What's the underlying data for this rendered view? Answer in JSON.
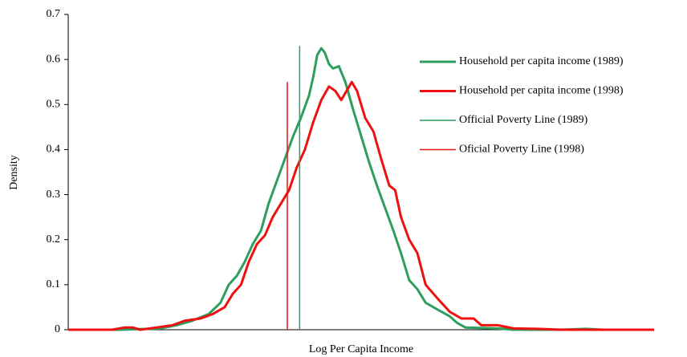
{
  "chart_data": {
    "type": "line",
    "x_label": "Log Per Capita Income",
    "y_label": "Density",
    "xlim": [
      0,
      100
    ],
    "ylim": [
      0,
      0.7
    ],
    "yticks": [
      0,
      0.1,
      0.2,
      0.3,
      0.4,
      0.5,
      0.6,
      0.7
    ],
    "legend": "upper right",
    "series": [
      {
        "name": "Household per capita income (1989)",
        "color": "#2e9e5f",
        "linewidth": 3,
        "x": [
          0,
          8.9,
          15.8,
          18.5,
          21.2,
          24.0,
          26.0,
          27.4,
          28.8,
          30.1,
          31.5,
          32.9,
          34.2,
          35.6,
          37.0,
          38.4,
          39.7,
          41.1,
          41.8,
          42.5,
          43.2,
          43.8,
          44.5,
          45.2,
          46.2,
          47.3,
          48.6,
          50.0,
          51.4,
          52.7,
          54.1,
          55.5,
          56.8,
          58.2,
          59.6,
          61.0,
          63.0,
          65.1,
          66.4,
          67.8,
          73.3,
          76.0,
          84.2,
          88.4,
          91.1,
          100
        ],
        "values": [
          0,
          0,
          0.003,
          0.01,
          0.02,
          0.035,
          0.06,
          0.1,
          0.12,
          0.15,
          0.19,
          0.22,
          0.28,
          0.33,
          0.38,
          0.43,
          0.47,
          0.52,
          0.56,
          0.61,
          0.625,
          0.615,
          0.59,
          0.58,
          0.585,
          0.55,
          0.49,
          0.43,
          0.37,
          0.32,
          0.27,
          0.22,
          0.17,
          0.11,
          0.09,
          0.06,
          0.045,
          0.03,
          0.015,
          0.005,
          0.003,
          0,
          0,
          0.002,
          0,
          0
        ]
      },
      {
        "name": "Household per capita income (1998)",
        "color": "#ee1111",
        "linewidth": 3,
        "x": [
          0,
          7.5,
          9.6,
          11.0,
          12.3,
          15.1,
          17.8,
          19.9,
          22.6,
          24.7,
          26.7,
          28.1,
          29.5,
          30.8,
          32.2,
          33.6,
          34.9,
          36.3,
          37.7,
          39.0,
          40.4,
          41.8,
          43.2,
          44.5,
          45.6,
          46.6,
          47.5,
          48.4,
          49.3,
          50.7,
          52.1,
          53.4,
          54.8,
          55.8,
          56.8,
          58.2,
          59.6,
          61.0,
          63.0,
          65.1,
          67.1,
          69.2,
          70.5,
          73.3,
          76.0,
          80.1,
          84.2,
          100
        ],
        "values": [
          0,
          0,
          0.005,
          0.005,
          0,
          0.005,
          0.01,
          0.02,
          0.025,
          0.035,
          0.05,
          0.08,
          0.1,
          0.15,
          0.19,
          0.21,
          0.25,
          0.28,
          0.31,
          0.36,
          0.4,
          0.46,
          0.51,
          0.54,
          0.53,
          0.51,
          0.53,
          0.55,
          0.53,
          0.47,
          0.44,
          0.38,
          0.32,
          0.31,
          0.25,
          0.2,
          0.17,
          0.1,
          0.07,
          0.04,
          0.025,
          0.025,
          0.01,
          0.01,
          0.003,
          0.002,
          0,
          0
        ]
      },
      {
        "name": "Official Poverty Line (1989)",
        "color": "#2e9e5f",
        "linewidth": 1.5,
        "x": [
          39.5,
          39.5
        ],
        "values": [
          0,
          0.63
        ]
      },
      {
        "name": "Oficial Poverty Line (1998)",
        "color": "#ee1111",
        "linewidth": 1.5,
        "x": [
          37.4,
          37.4
        ],
        "values": [
          0,
          0.55
        ]
      }
    ]
  }
}
